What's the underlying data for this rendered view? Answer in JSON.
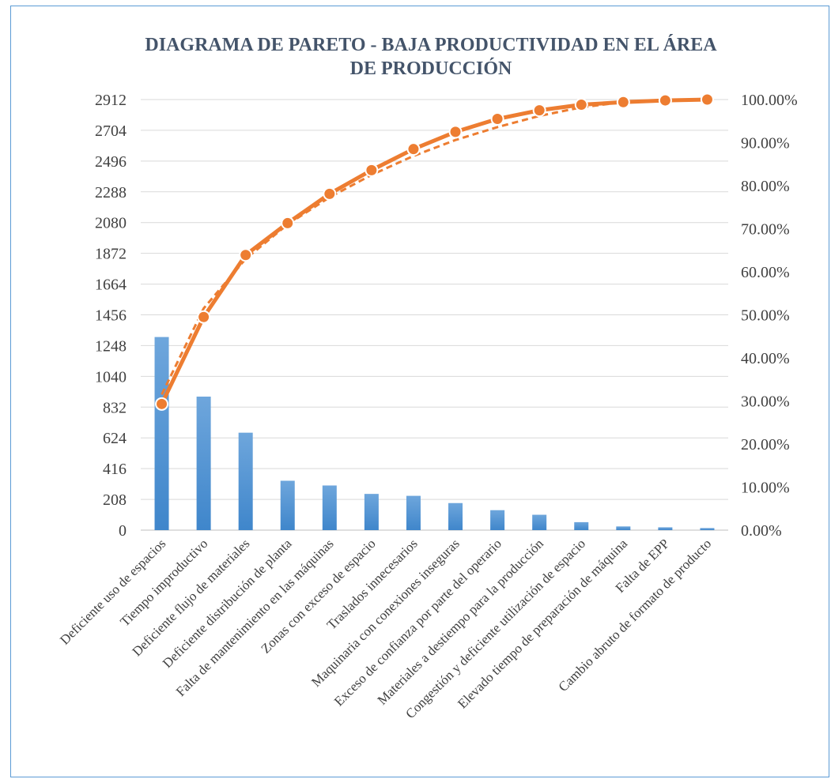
{
  "chart_data": {
    "type": "bar",
    "title": "DIAGRAMA DE PARETO - BAJA PRODUCTIVIDAD EN EL ÁREA DE PRODUCCIÓN",
    "title_lines": [
      "DIAGRAMA DE PARETO - BAJA PRODUCTIVIDAD EN EL ÁREA",
      "DE PRODUCCIÓN"
    ],
    "categories": [
      "Deficiente uso de espacios",
      "Tiempo improductivo",
      "Deficiente flujo de materiales",
      "Deficiente distribución de planta",
      "Falta de mantenimiento en las máquinas",
      "Zonas con exceso de espacio",
      "Traslados innecesarios",
      "Maquinaria con conexiones inseguras",
      "Exceso de confianza por parte del operario",
      "Materiales a destiempo para la producción",
      "Congestión y deficiente utilización de espacio",
      "Elevado tiempo de preparación de máquina",
      "Falta de EPP",
      "Cambio abruto de formato de producto"
    ],
    "series": [
      {
        "type": "bar",
        "axis": "left",
        "values": [
          1306,
          903,
          659,
          334,
          302,
          245,
          232,
          183,
          135,
          104,
          54,
          25,
          19,
          14
        ]
      },
      {
        "type": "line",
        "axis": "right",
        "values": [
          29.3,
          49.5,
          63.9,
          71.3,
          78.1,
          83.6,
          88.5,
          92.5,
          95.5,
          97.5,
          98.8,
          99.4,
          99.8,
          100.0
        ]
      },
      {
        "type": "line-trend",
        "axis": "right",
        "style": "dashed",
        "values": [
          31.5,
          51.5,
          63.0,
          71.0,
          77.3,
          82.5,
          86.9,
          90.6,
          93.6,
          96.2,
          98.2,
          99.4,
          99.8,
          100.0
        ]
      }
    ],
    "y_left": {
      "ticks": [
        "0",
        "208",
        "416",
        "624",
        "832",
        "1040",
        "1248",
        "1456",
        "1664",
        "1872",
        "2080",
        "2288",
        "2496",
        "2704",
        "2912"
      ],
      "ylim": [
        0,
        2912
      ]
    },
    "y_right": {
      "ticks": [
        "0.00%",
        "10.00%",
        "20.00%",
        "30.00%",
        "40.00%",
        "50.00%",
        "60.00%",
        "70.00%",
        "80.00%",
        "90.00%",
        "100.00%"
      ],
      "ylim": [
        0,
        100
      ]
    },
    "grid": true,
    "legend": "none",
    "colors": {
      "bar": "#5b9bd5",
      "line": "#ed7d31",
      "grid": "#d9d9d9",
      "frame": "#5b9bd5",
      "title": "#44546a",
      "text": "#404040"
    }
  }
}
